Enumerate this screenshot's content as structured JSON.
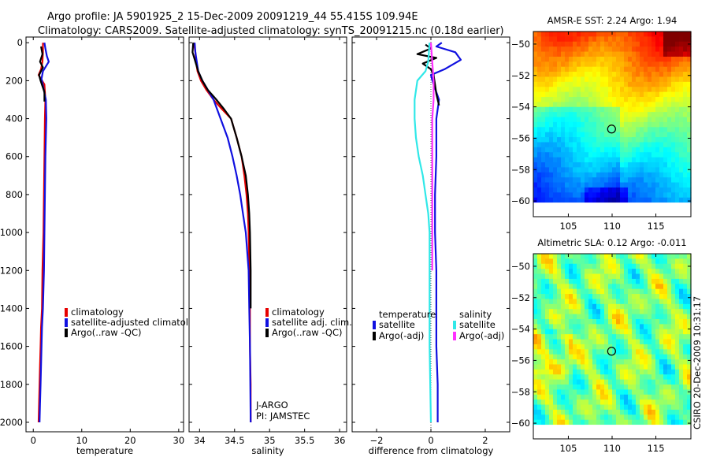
{
  "header": {
    "line1": "Argo profile: JA 5901925_2 15-Dec-2009 20091219_44 55.415S 109.94E",
    "line2": "Climatology: CARS2009. Satellite-adjusted climatology: synTS_20091215.nc (0.18d earlier)"
  },
  "stamp": "CSIRO 20-Dec-2009 10:31:17",
  "colors": {
    "climatology": "#e60000",
    "satellite": "#1010e0",
    "argo": "#000000",
    "sat_salinity": "#30e8e8",
    "argo_salinity": "#ff30ff"
  },
  "chart_data": [
    {
      "type": "line",
      "title": "",
      "xlabel": "temperature",
      "ylabel": "",
      "xlim": [
        -1.5,
        31
      ],
      "ylim": [
        2050,
        -30
      ],
      "xticks": [
        0,
        10,
        20,
        30
      ],
      "yticks": [
        0,
        200,
        400,
        600,
        800,
        1000,
        1200,
        1400,
        1600,
        1800,
        2000
      ],
      "legend": [
        "climatology",
        "satellite-adjusted climatology",
        "Argo(..raw -QC)"
      ],
      "series": [
        {
          "name": "climatology",
          "color": "#e60000",
          "x": [
            2.0,
            2.0,
            1.9,
            1.6,
            1.1,
            2.3,
            2.5,
            2.4,
            2.3,
            2.2,
            2.1,
            1.9,
            1.8,
            1.6,
            1.5,
            1.4,
            1.3,
            1.2,
            1.1
          ],
          "y": [
            0,
            50,
            100,
            140,
            170,
            220,
            300,
            400,
            600,
            800,
            1000,
            1200,
            1400,
            1500,
            1600,
            1700,
            1800,
            1900,
            2000
          ]
        },
        {
          "name": "satellite-adjusted climatology",
          "color": "#1010e0",
          "x": [
            2.3,
            2.5,
            2.8,
            3.2,
            2.0,
            1.7,
            2.6,
            2.7,
            2.5,
            2.4,
            2.3,
            2.2,
            2.0,
            1.8,
            1.7,
            1.6,
            1.5,
            1.4,
            1.3
          ],
          "y": [
            0,
            30,
            70,
            100,
            150,
            190,
            300,
            400,
            600,
            800,
            1000,
            1200,
            1400,
            1500,
            1600,
            1700,
            1800,
            1900,
            2000
          ]
        },
        {
          "name": "Argo(..raw -QC)",
          "color": "#000000",
          "x": [
            1.6,
            1.9,
            1.4,
            2.0,
            1.2,
            1.5,
            2.3,
            2.3
          ],
          "y": [
            20,
            60,
            100,
            130,
            170,
            200,
            260,
            310
          ]
        }
      ]
    },
    {
      "type": "line",
      "title": "",
      "xlabel": "salinity",
      "ylabel": "",
      "xlim": [
        33.85,
        36.1
      ],
      "ylim": [
        2050,
        -30
      ],
      "xticks": [
        34,
        34.5,
        35,
        35.5,
        36
      ],
      "yticks": [
        0,
        200,
        400,
        600,
        800,
        1000,
        1200,
        1400,
        1600,
        1800,
        2000
      ],
      "legend": [
        "climatology",
        "satellite adj. clim.",
        "Argo(..raw -QC)"
      ],
      "annotations": [
        "J-ARGO",
        "PI: JAMSTEC"
      ],
      "series": [
        {
          "name": "climatology",
          "color": "#e60000",
          "x": [
            33.92,
            33.94,
            33.95,
            33.97,
            34.02,
            34.1,
            34.2,
            34.32,
            34.45,
            34.53,
            34.6,
            34.64,
            34.67,
            34.69,
            34.7,
            34.71,
            34.72,
            34.72,
            34.73,
            34.73
          ],
          "y": [
            0,
            50,
            100,
            150,
            200,
            250,
            300,
            350,
            400,
            500,
            600,
            700,
            800,
            900,
            1000,
            1200,
            1400,
            1600,
            1800,
            2000
          ]
        },
        {
          "name": "satellite adj. clim.",
          "color": "#1010e0",
          "x": [
            33.93,
            33.94,
            33.96,
            33.98,
            34.04,
            34.12,
            34.2,
            34.3,
            34.4,
            34.47,
            34.53,
            34.58,
            34.62,
            34.66,
            34.7,
            34.71,
            34.72,
            34.73
          ],
          "y": [
            0,
            50,
            100,
            150,
            200,
            250,
            300,
            400,
            500,
            600,
            700,
            800,
            900,
            1000,
            1200,
            1400,
            1600,
            2000
          ]
        },
        {
          "name": "Argo(..raw -QC)",
          "color": "#000000",
          "x": [
            33.91,
            33.9,
            33.94,
            33.98,
            34.04,
            34.12,
            34.24,
            34.35,
            34.45,
            34.53,
            34.6,
            34.66,
            34.69,
            34.71,
            34.72,
            34.73,
            34.73
          ],
          "y": [
            0,
            50,
            100,
            150,
            200,
            250,
            300,
            350,
            400,
            500,
            600,
            700,
            800,
            900,
            1000,
            1200,
            1400
          ]
        }
      ]
    },
    {
      "type": "line",
      "title": "",
      "xlabel": "difference from climatology",
      "ylabel": "",
      "xlim": [
        -2.9,
        2.9
      ],
      "ylim": [
        2050,
        -30
      ],
      "xticks": [
        -2,
        0,
        2
      ],
      "yticks": [
        0,
        200,
        400,
        600,
        800,
        1000,
        1200,
        1400,
        1600,
        1800,
        2000
      ],
      "legend_groups": [
        {
          "title": "temperature",
          "items": [
            "satellite",
            "Argo(-adj)"
          ]
        },
        {
          "title": "salinity",
          "items": [
            "satellite",
            "Argo(-adj)"
          ]
        }
      ],
      "series": [
        {
          "name": "temperature satellite",
          "color": "#1010e0",
          "x": [
            0.4,
            0.2,
            0.9,
            1.1,
            0.5,
            0.0,
            0.1,
            0.3,
            0.2,
            0.2,
            0.15,
            0.15,
            0.2,
            0.2,
            0.2,
            0.25,
            0.25,
            0.25
          ],
          "y": [
            0,
            20,
            50,
            90,
            140,
            170,
            220,
            300,
            400,
            600,
            800,
            1000,
            1200,
            1400,
            1600,
            1800,
            1900,
            2000
          ]
        },
        {
          "name": "temperature Argo(-adj)",
          "color": "#000000",
          "x": [
            -0.2,
            0.0,
            -0.5,
            0.2,
            -0.3,
            0.0,
            0.1,
            0.15,
            0.2,
            0.25,
            0.3
          ],
          "y": [
            10,
            30,
            60,
            80,
            110,
            140,
            170,
            220,
            270,
            300,
            330
          ]
        },
        {
          "name": "salinity satellite",
          "color": "#30e8e8",
          "x": [
            -0.05,
            -0.1,
            -0.2,
            -0.5,
            -0.6,
            -0.6,
            -0.55,
            -0.45,
            -0.3,
            -0.2,
            -0.1,
            -0.05,
            -0.05,
            -0.05,
            0.0
          ],
          "y": [
            0,
            100,
            150,
            200,
            300,
            400,
            500,
            600,
            700,
            800,
            900,
            1000,
            1200,
            1600,
            2000
          ]
        },
        {
          "name": "salinity Argo(-adj)",
          "color": "#ff30ff",
          "x": [
            0.0,
            0.05,
            0.1,
            0.1,
            0.05,
            0.05,
            0.05,
            0.05,
            0.05
          ],
          "y": [
            0,
            100,
            200,
            300,
            400,
            600,
            800,
            1000,
            1200
          ]
        }
      ]
    },
    {
      "type": "heatmap",
      "title": "AMSR-E SST: 2.24  Argo: 1.94",
      "xlim": [
        101,
        119
      ],
      "ylim": [
        -61,
        -49.2
      ],
      "xticks": [
        105,
        110,
        115
      ],
      "yticks": [
        -50,
        -52,
        -54,
        -56,
        -58,
        -60
      ],
      "data_bottom": -60.1,
      "marker": {
        "x": 109.94,
        "y": -55.415
      },
      "colorscale": "jet"
    },
    {
      "type": "heatmap",
      "title": "Altimetric SLA: 0.12  Argo: -0.011",
      "xlim": [
        101,
        119
      ],
      "ylim": [
        -61,
        -49.2
      ],
      "xticks": [
        105,
        110,
        115
      ],
      "yticks": [
        -50,
        -52,
        -54,
        -56,
        -58,
        -60
      ],
      "data_bottom": -60.1,
      "marker": {
        "x": 109.94,
        "y": -55.415
      },
      "colorscale": "jet"
    }
  ]
}
